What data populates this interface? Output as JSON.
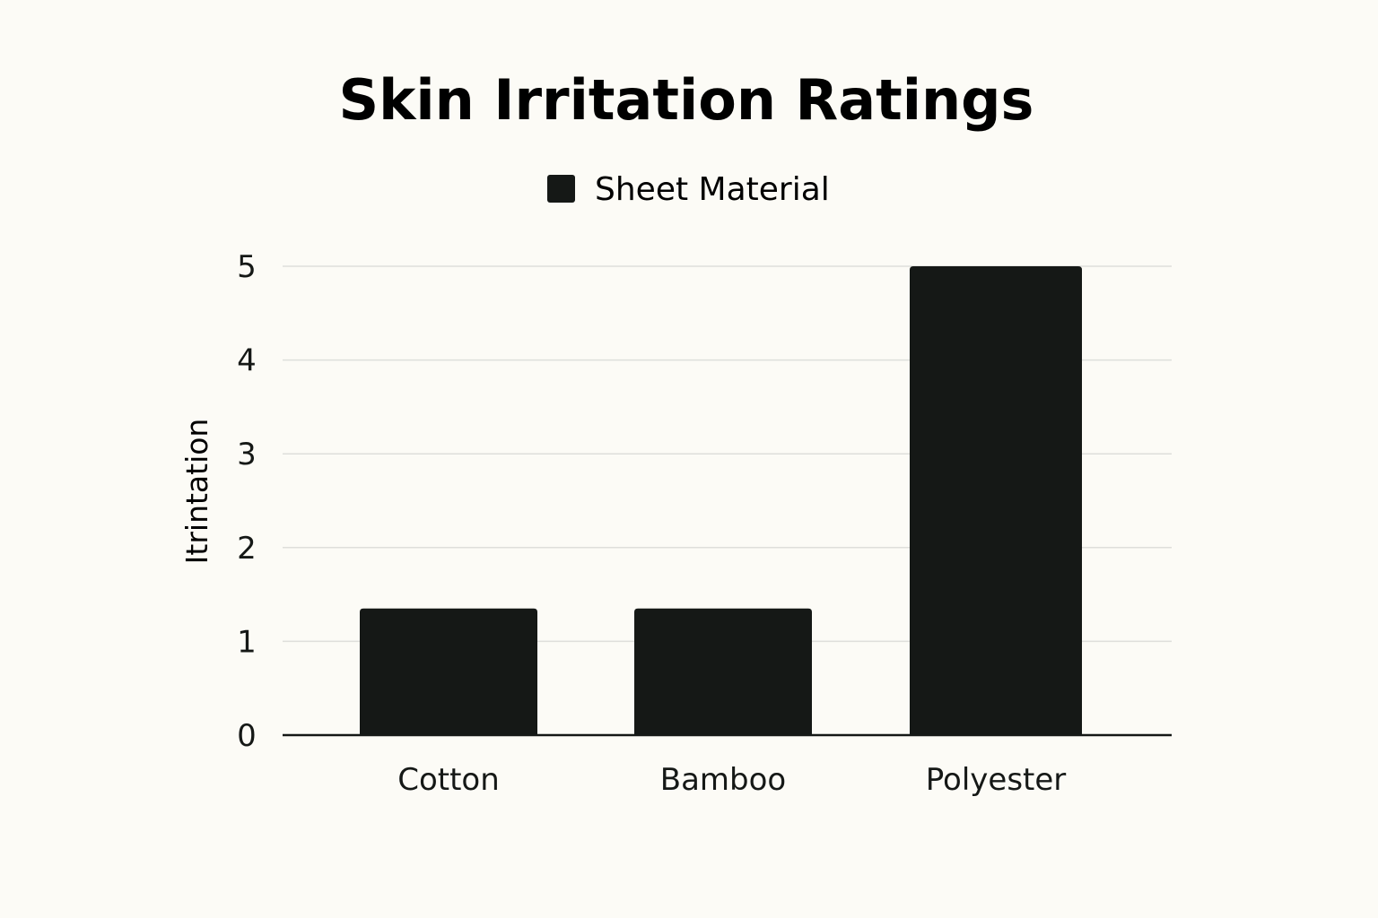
{
  "chart_data": {
    "type": "bar",
    "title": "Skin Irritation Ratings",
    "xlabel": "",
    "ylabel": "Itrintation",
    "categories": [
      "Cotton",
      "Bamboo",
      "Polyester"
    ],
    "series": [
      {
        "name": "Sheet Material",
        "values": [
          1.35,
          1.35,
          5.0
        ]
      }
    ],
    "ylim": [
      0,
      5
    ],
    "yticks": [
      "0",
      "1",
      "2",
      "3",
      "4",
      "5"
    ],
    "grid": true,
    "legend_position": "top-center",
    "colors": {
      "bar": "#151816",
      "grid": "#dedfdb",
      "axis": "#151816",
      "background": "#fcfbf6"
    }
  }
}
